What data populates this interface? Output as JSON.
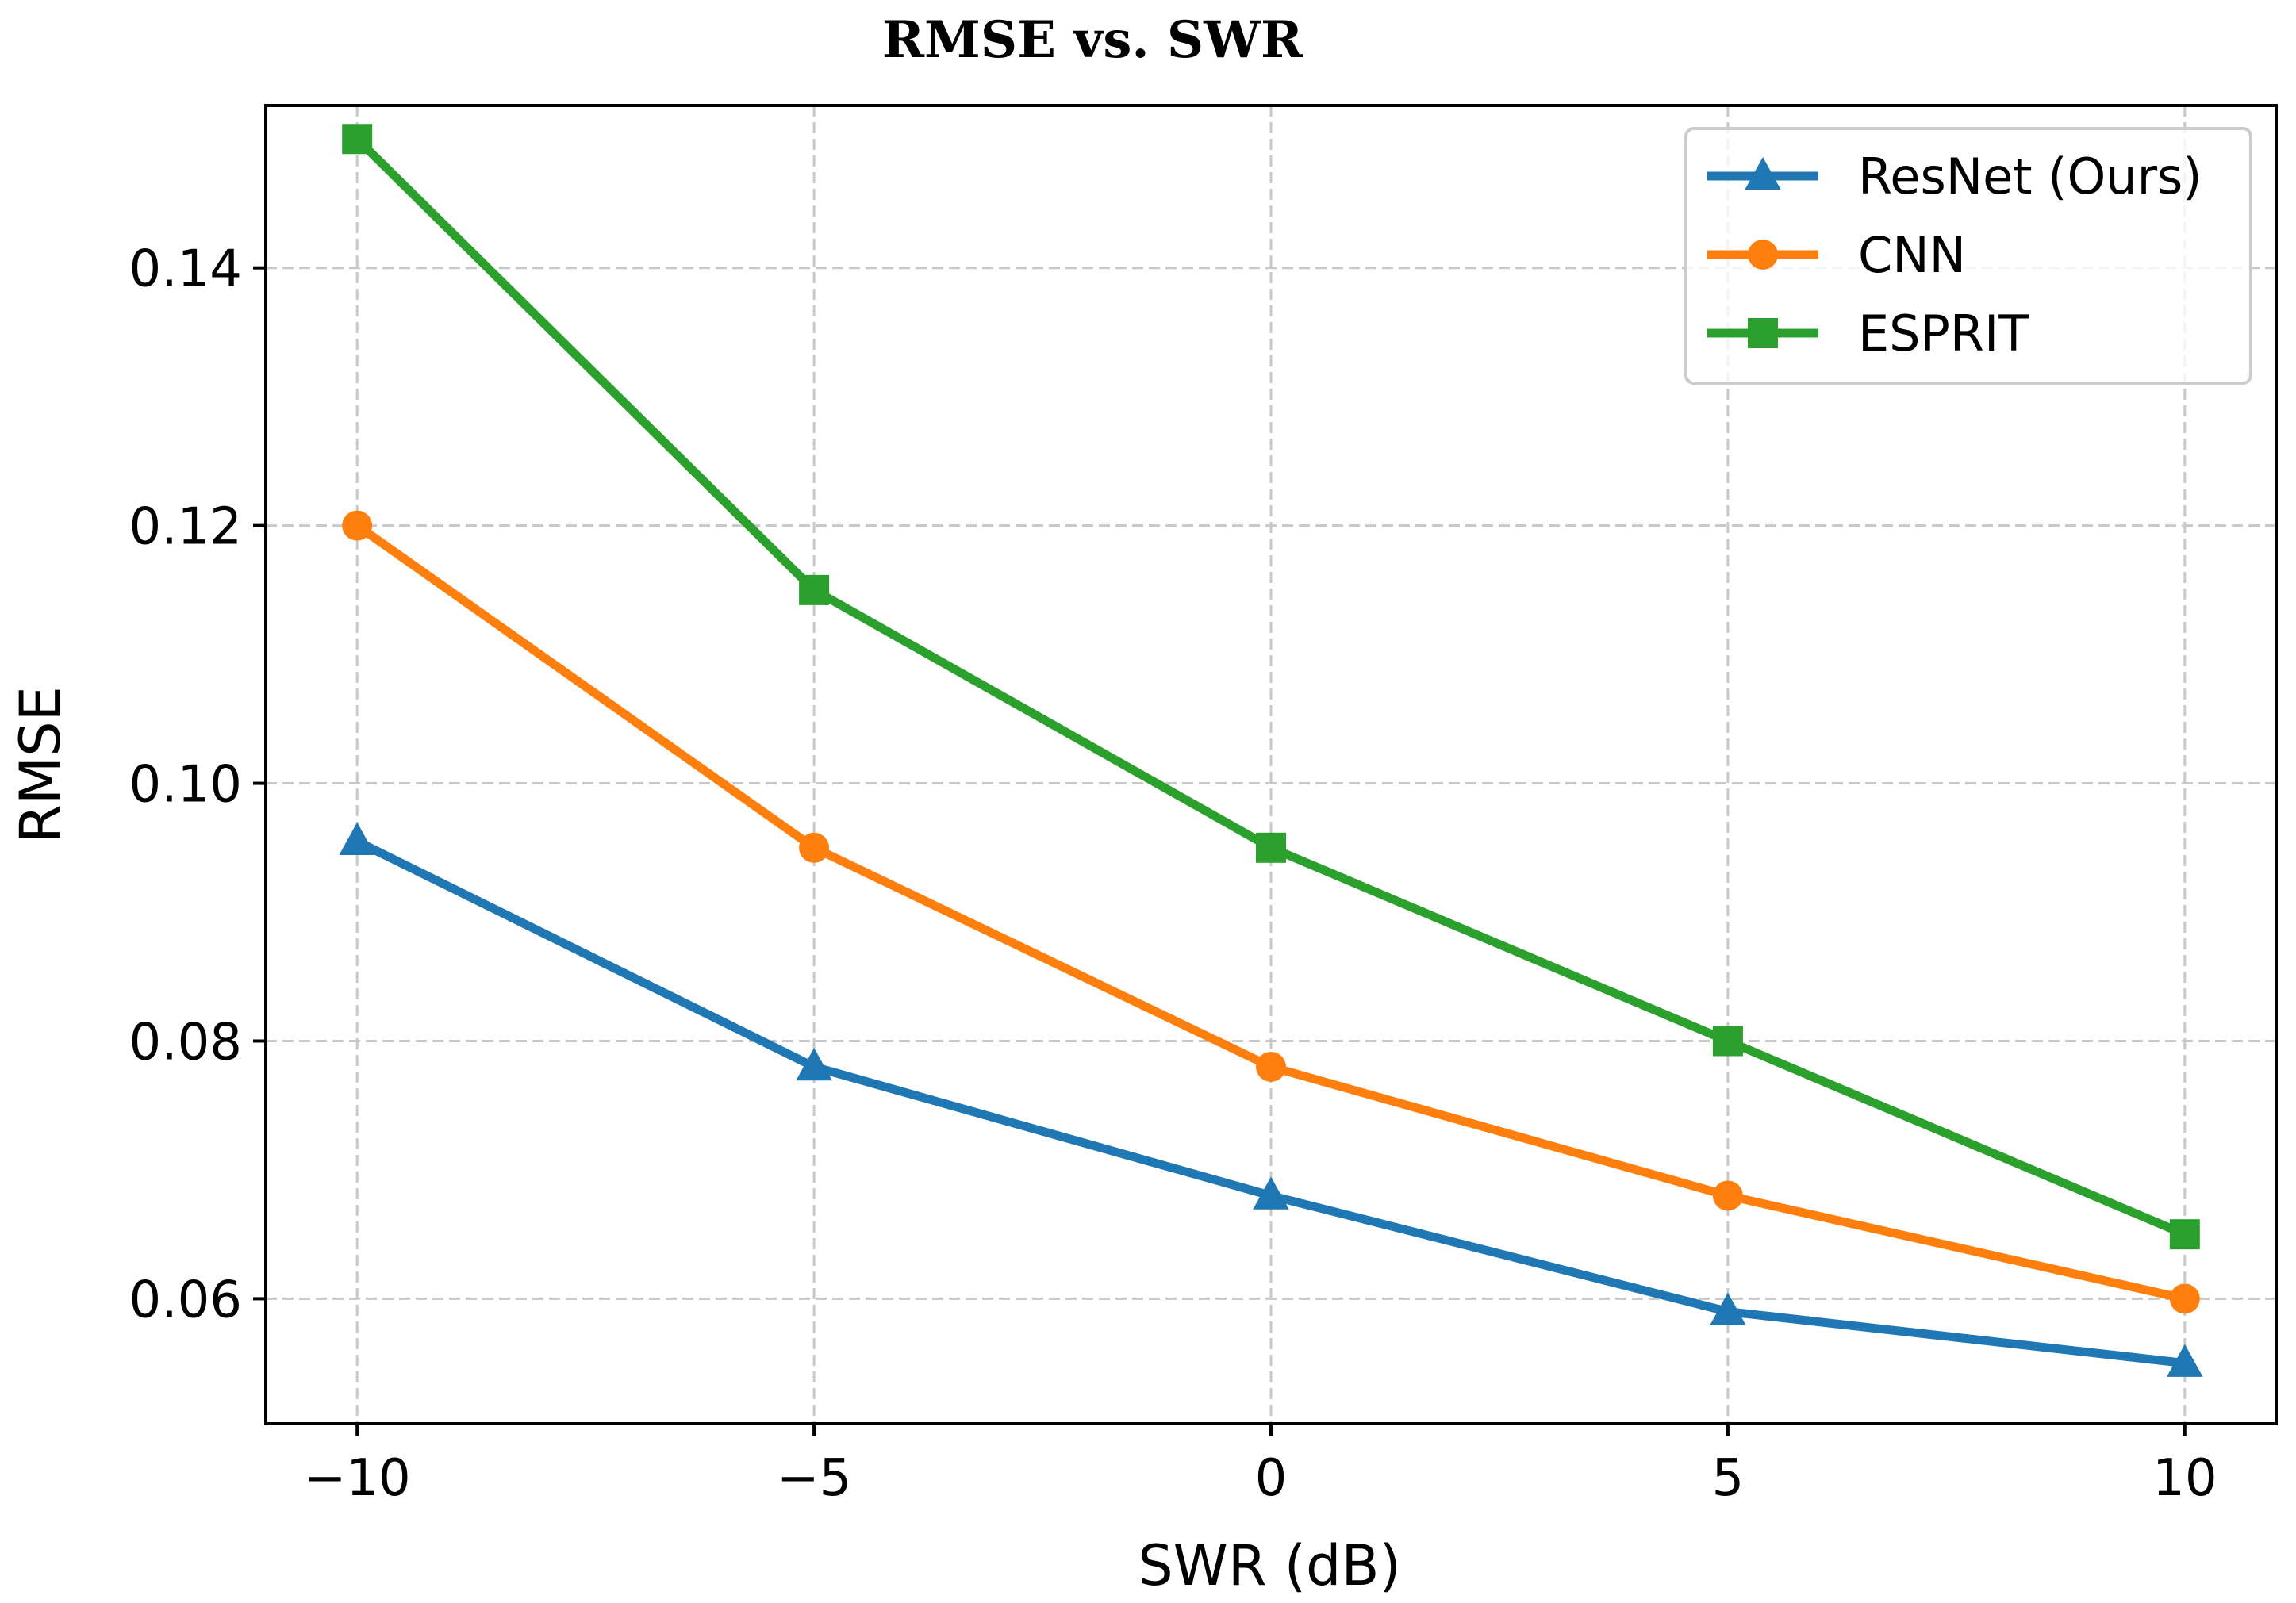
{
  "chart_data": {
    "type": "line",
    "title": "RMSE vs. SWR",
    "xlabel": "SWR (dB)",
    "ylabel": "RMSE",
    "x": [
      -10,
      -5,
      0,
      5,
      10
    ],
    "xlim": [
      -11,
      11
    ],
    "ylim": [
      0.0503,
      0.1526
    ],
    "xticks": [
      -10,
      -5,
      0,
      5,
      10
    ],
    "xtick_labels": [
      "−10",
      "−5",
      "0",
      "5",
      "10"
    ],
    "yticks": [
      0.06,
      0.08,
      0.1,
      0.12,
      0.14
    ],
    "ytick_labels": [
      "0.06",
      "0.08",
      "0.10",
      "0.12",
      "0.14"
    ],
    "grid": true,
    "legend_position": "top-right",
    "series": [
      {
        "name": "ResNet (Ours)",
        "color": "#1f77b4",
        "marker": "triangle",
        "values": [
          0.0955,
          0.078,
          0.068,
          0.059,
          0.055
        ]
      },
      {
        "name": "CNN",
        "color": "#ff7f0e",
        "marker": "circle",
        "values": [
          0.12,
          0.095,
          0.078,
          0.068,
          0.06
        ]
      },
      {
        "name": "ESPRIT",
        "color": "#2ca02c",
        "marker": "square",
        "values": [
          0.15,
          0.115,
          0.095,
          0.08,
          0.065
        ]
      }
    ]
  }
}
